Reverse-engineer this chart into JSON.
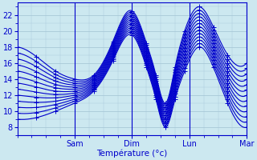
{
  "bg_color": "#cce8f0",
  "grid_color": "#a8c8d8",
  "line_color": "#0000cc",
  "markersize": 3,
  "linewidth": 0.8,
  "xlabel_text": "Température (°c)",
  "xtick_labels": [
    "Sam",
    "Dim",
    "Lun",
    "Mar"
  ],
  "yticks": [
    8,
    10,
    12,
    14,
    16,
    18,
    20,
    22
  ],
  "ylim": [
    7.0,
    23.5
  ],
  "xlim": [
    0,
    96
  ],
  "xtick_positions": [
    24,
    48,
    72,
    96
  ],
  "xlabel_fontsize": 7.5,
  "tick_fontsize": 7
}
